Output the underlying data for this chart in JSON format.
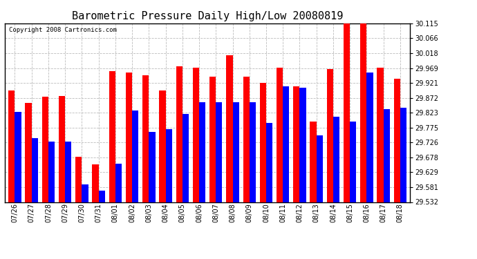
{
  "title": "Barometric Pressure Daily High/Low 20080819",
  "copyright": "Copyright 2008 Cartronics.com",
  "dates": [
    "07/26",
    "07/27",
    "07/28",
    "07/29",
    "07/30",
    "07/31",
    "08/01",
    "08/02",
    "08/03",
    "08/04",
    "08/05",
    "08/06",
    "08/07",
    "08/08",
    "08/09",
    "08/10",
    "08/11",
    "08/12",
    "08/13",
    "08/14",
    "08/15",
    "08/16",
    "08/17",
    "08/18"
  ],
  "highs": [
    29.895,
    29.855,
    29.875,
    29.878,
    29.68,
    29.655,
    29.96,
    29.955,
    29.945,
    29.895,
    29.975,
    29.97,
    29.94,
    30.01,
    29.94,
    29.92,
    29.97,
    29.91,
    29.795,
    29.965,
    30.12,
    30.115,
    29.97,
    29.935
  ],
  "lows": [
    29.825,
    29.74,
    29.73,
    29.73,
    29.59,
    29.57,
    29.658,
    29.83,
    29.76,
    29.77,
    29.82,
    29.858,
    29.858,
    29.858,
    29.858,
    29.79,
    29.91,
    29.905,
    29.75,
    29.81,
    29.795,
    29.955,
    29.835,
    29.84
  ],
  "high_color": "#FF0000",
  "low_color": "#0000FF",
  "bg_color": "#FFFFFF",
  "grid_color": "#BBBBBB",
  "ymin": 29.532,
  "ymax": 30.115,
  "yticks": [
    29.532,
    29.581,
    29.629,
    29.678,
    29.726,
    29.775,
    29.823,
    29.872,
    29.921,
    29.969,
    30.018,
    30.066,
    30.115
  ],
  "bar_width": 0.38,
  "title_fontsize": 11,
  "tick_fontsize": 7,
  "copyright_fontsize": 6.5
}
